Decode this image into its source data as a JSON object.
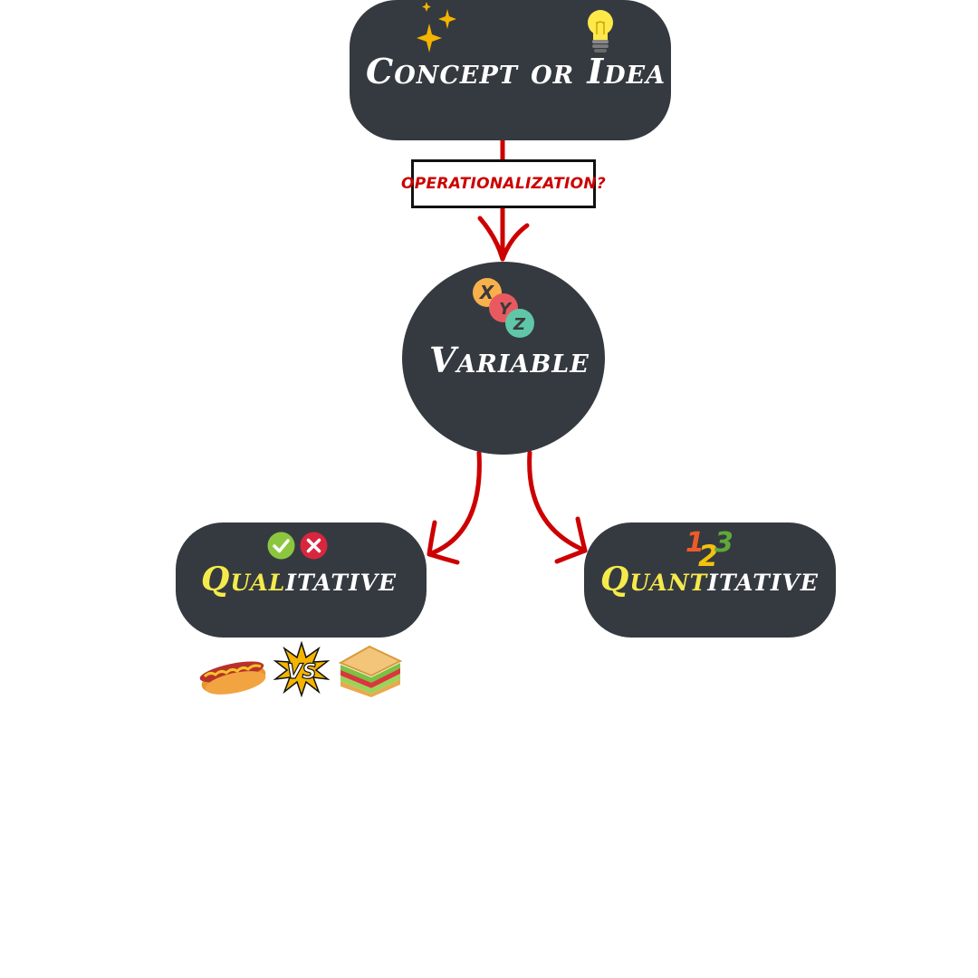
{
  "nodes": {
    "concept": {
      "label": "Concept or Idea"
    },
    "operationalization": {
      "label": "operationalization?"
    },
    "variable": {
      "label": "Variable",
      "icon_letters": [
        "X",
        "Y",
        "Z"
      ]
    },
    "qualitative": {
      "label_highlight": "Qual",
      "label_rest": "itative"
    },
    "quantitative": {
      "label_highlight": "Quant",
      "label_rest": "itative"
    }
  },
  "icons": {
    "concept": [
      "sparkle-icon",
      "lightbulb-icon"
    ],
    "qualitative": [
      "check-icon",
      "cross-icon",
      "hotdog-icon",
      "vs-burst-icon",
      "sandwich-icon"
    ],
    "quantitative": [
      "numbers-123-icon"
    ],
    "vs_text": "VS",
    "numbers": [
      "1",
      "2",
      "3"
    ]
  },
  "colors": {
    "node_bg": "#353a40",
    "arrow": "#cc0000",
    "highlight": "#f5ea4c",
    "text": "#ffffff"
  }
}
